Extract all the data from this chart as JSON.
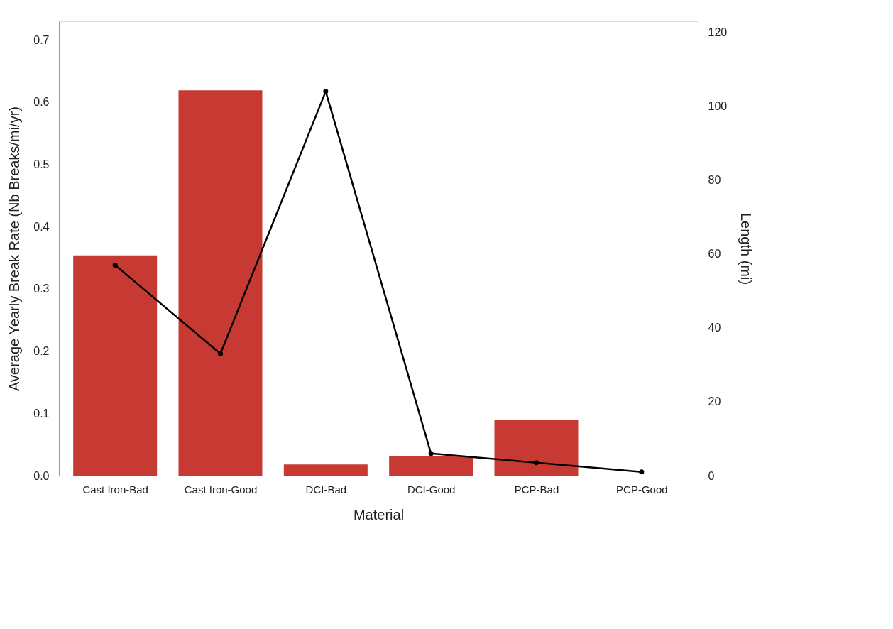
{
  "chart_data": {
    "type": "bar",
    "xlabel": "Material",
    "ylabel": "Average Yearly Break Rate (Nb Breaks/mi/yr)",
    "y2label": "Length (mi)",
    "categories": [
      "Cast Iron-Bad",
      "Cast Iron-Good",
      "DCI-Bad",
      "DCI-Good",
      "PCP-Bad",
      "PCP-Good"
    ],
    "series": [
      {
        "color": "#c63a33",
        "values": [
          0.354,
          0.619,
          0.018,
          0.031,
          0.09,
          0
        ]
      },
      {
        "type": "line",
        "axis": "y2",
        "color": "#000000",
        "marker": "circle",
        "values": [
          57,
          33,
          104,
          6,
          3.5,
          1
        ]
      }
    ],
    "ylim": [
      0,
      0.73
    ],
    "yticks": [
      {
        "value": 0,
        "label": "0.0"
      },
      0.1,
      0.2,
      0.3,
      0.4,
      0.5,
      0.6,
      0.7
    ],
    "y2lim": [
      0,
      123
    ],
    "y2ticks": [
      0,
      20,
      40,
      60,
      80,
      100,
      120
    ],
    "grid": false
  }
}
